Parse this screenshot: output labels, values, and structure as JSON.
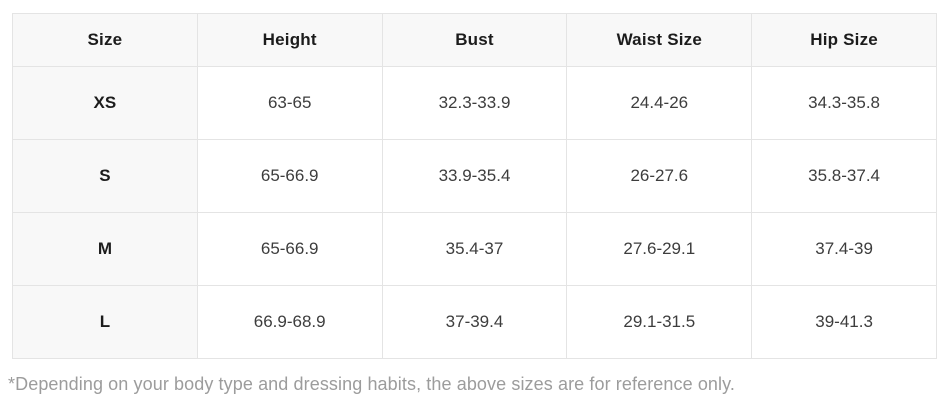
{
  "table": {
    "columns": [
      "Size",
      "Height",
      "Bust",
      "Waist Size",
      "Hip Size"
    ],
    "rows": [
      [
        "XS",
        "63-65",
        "32.3-33.9",
        "24.4-26",
        "34.3-35.8"
      ],
      [
        "S",
        "65-66.9",
        "33.9-35.4",
        "26-27.6",
        "35.8-37.4"
      ],
      [
        "M",
        "65-66.9",
        "35.4-37",
        "27.6-29.1",
        "37.4-39"
      ],
      [
        "L",
        "66.9-68.9",
        "37-39.4",
        "29.1-31.5",
        "39-41.3"
      ]
    ]
  },
  "footnote": "*Depending on your body type and dressing habits, the above sizes are for reference only.",
  "chart_data": {
    "type": "table",
    "columns": [
      "Size",
      "Height",
      "Bust",
      "Waist Size",
      "Hip Size"
    ],
    "rows": [
      [
        "XS",
        "63-65",
        "32.3-33.9",
        "24.4-26",
        "34.3-35.8"
      ],
      [
        "S",
        "65-66.9",
        "33.9-35.4",
        "26-27.6",
        "35.8-37.4"
      ],
      [
        "M",
        "65-66.9",
        "35.4-37",
        "27.6-29.1",
        "37.4-39"
      ],
      [
        "L",
        "66.9-68.9",
        "37-39.4",
        "29.1-31.5",
        "39-41.3"
      ]
    ]
  },
  "colors": {
    "shaded_bg": "#f8f8f8",
    "border": "#e4e4e4",
    "header_text": "#1c1c1c",
    "cell_text": "#3d3d3d",
    "footnote_text": "#9c9c9c"
  }
}
